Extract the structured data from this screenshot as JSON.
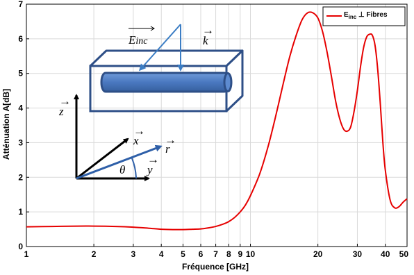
{
  "chart_data": {
    "type": "line",
    "title": "",
    "xlabel": "Fréquence [GHz]",
    "ylabel": "Atténuation A[dB]",
    "xscale": "log",
    "xlim": [
      1,
      50
    ],
    "ylim": [
      0,
      7
    ],
    "xticks": [
      1,
      2,
      3,
      4,
      5,
      6,
      7,
      8,
      9,
      10,
      20,
      30,
      40,
      50
    ],
    "yticks": [
      0,
      1,
      2,
      3,
      4,
      5,
      6,
      7
    ],
    "grid": true,
    "legend_position": "top-right",
    "legend": {
      "main": "E",
      "sub": "inc",
      "rest": " ⊥ Fibres"
    },
    "series": [
      {
        "name": "Einc ⊥ Fibres",
        "color": "#e60000",
        "x": [
          1,
          1.3,
          1.7,
          2,
          2.5,
          3,
          3.5,
          4,
          4.5,
          5,
          5.5,
          6,
          6.5,
          7,
          7.5,
          8,
          8.5,
          9,
          9.5,
          10,
          11,
          12,
          13,
          14,
          15,
          16,
          17,
          18,
          19,
          20,
          21,
          22,
          23,
          24,
          25,
          26,
          27,
          28,
          29,
          30,
          31,
          32,
          33,
          34,
          35,
          36,
          37,
          38,
          39,
          40,
          42,
          44,
          46,
          48,
          50
        ],
        "y": [
          0.57,
          0.58,
          0.59,
          0.59,
          0.58,
          0.56,
          0.53,
          0.5,
          0.49,
          0.49,
          0.5,
          0.51,
          0.54,
          0.58,
          0.64,
          0.72,
          0.84,
          1.0,
          1.2,
          1.47,
          2.1,
          2.9,
          3.8,
          4.7,
          5.5,
          6.1,
          6.55,
          6.75,
          6.75,
          6.6,
          6.2,
          5.6,
          4.9,
          4.2,
          3.7,
          3.4,
          3.33,
          3.45,
          3.9,
          4.5,
          5.2,
          5.75,
          6.05,
          6.13,
          6.1,
          5.8,
          5.1,
          4.1,
          3.0,
          2.2,
          1.35,
          1.12,
          1.15,
          1.28,
          1.38
        ]
      }
    ]
  },
  "diagram": {
    "e_inc_label": "E",
    "e_inc_sub": "inc",
    "k_label": "k",
    "z_label": "z",
    "x_label": "x",
    "r_label": "r",
    "y_label": "y",
    "theta_label": "θ",
    "vector_arrow": "→"
  }
}
